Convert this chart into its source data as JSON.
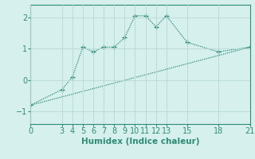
{
  "line1_x": [
    0,
    3,
    4,
    5,
    6,
    7,
    8,
    9,
    10,
    11,
    12,
    13,
    15,
    18,
    21
  ],
  "line1_y": [
    -0.8,
    -0.3,
    0.1,
    1.05,
    0.9,
    1.05,
    1.05,
    1.35,
    2.05,
    2.05,
    1.7,
    2.05,
    1.2,
    0.9,
    1.05
  ],
  "line2_x": [
    0,
    21
  ],
  "line2_y": [
    -0.8,
    1.05
  ],
  "line_color": "#2e8b74",
  "bg_color": "#d6f0ee",
  "grid_color": "#b8d8d4",
  "xlabel": "Humidex (Indice chaleur)",
  "xticks": [
    0,
    3,
    4,
    5,
    6,
    7,
    8,
    9,
    10,
    11,
    12,
    13,
    15,
    18,
    21
  ],
  "yticks": [
    -1,
    0,
    1,
    2
  ],
  "xlim": [
    0,
    21
  ],
  "ylim": [
    -1.4,
    2.4
  ],
  "xlabel_fontsize": 7.5,
  "tick_fontsize": 7
}
